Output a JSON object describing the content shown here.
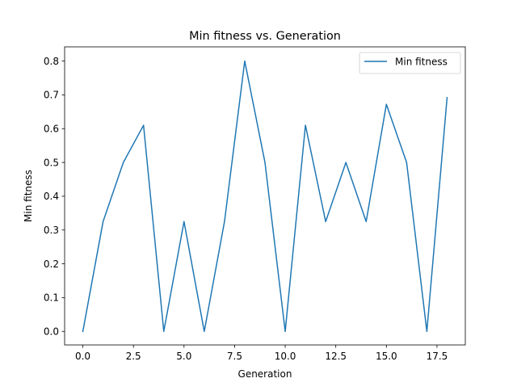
{
  "chart_data": {
    "type": "line",
    "title": "Min fitness vs. Generation",
    "xlabel": "Generation",
    "ylabel": "Min fitness",
    "xlim": [
      -0.9,
      18.9
    ],
    "ylim": [
      -0.04,
      0.842
    ],
    "xticks": [
      0.0,
      2.5,
      5.0,
      7.5,
      10.0,
      12.5,
      15.0,
      17.5
    ],
    "xtick_labels": [
      "0.0",
      "2.5",
      "5.0",
      "7.5",
      "10.0",
      "12.5",
      "15.0",
      "17.5"
    ],
    "yticks": [
      0.0,
      0.1,
      0.2,
      0.3,
      0.4,
      0.5,
      0.6,
      0.7,
      0.8
    ],
    "ytick_labels": [
      "0.0",
      "0.1",
      "0.2",
      "0.3",
      "0.4",
      "0.5",
      "0.6",
      "0.7",
      "0.8"
    ],
    "grid": false,
    "legend_position": "top-right",
    "series": [
      {
        "name": "Min fitness",
        "color": "#1f77b4",
        "x": [
          0,
          1,
          2,
          3,
          4,
          5,
          6,
          7,
          8,
          9,
          10,
          11,
          12,
          13,
          14,
          15,
          16,
          17,
          18
        ],
        "y": [
          0.0,
          0.325,
          0.5,
          0.61,
          0.0,
          0.325,
          0.0,
          0.325,
          0.8,
          0.5,
          0.0,
          0.61,
          0.325,
          0.5,
          0.325,
          0.672,
          0.5,
          0.0,
          0.692
        ]
      }
    ]
  }
}
